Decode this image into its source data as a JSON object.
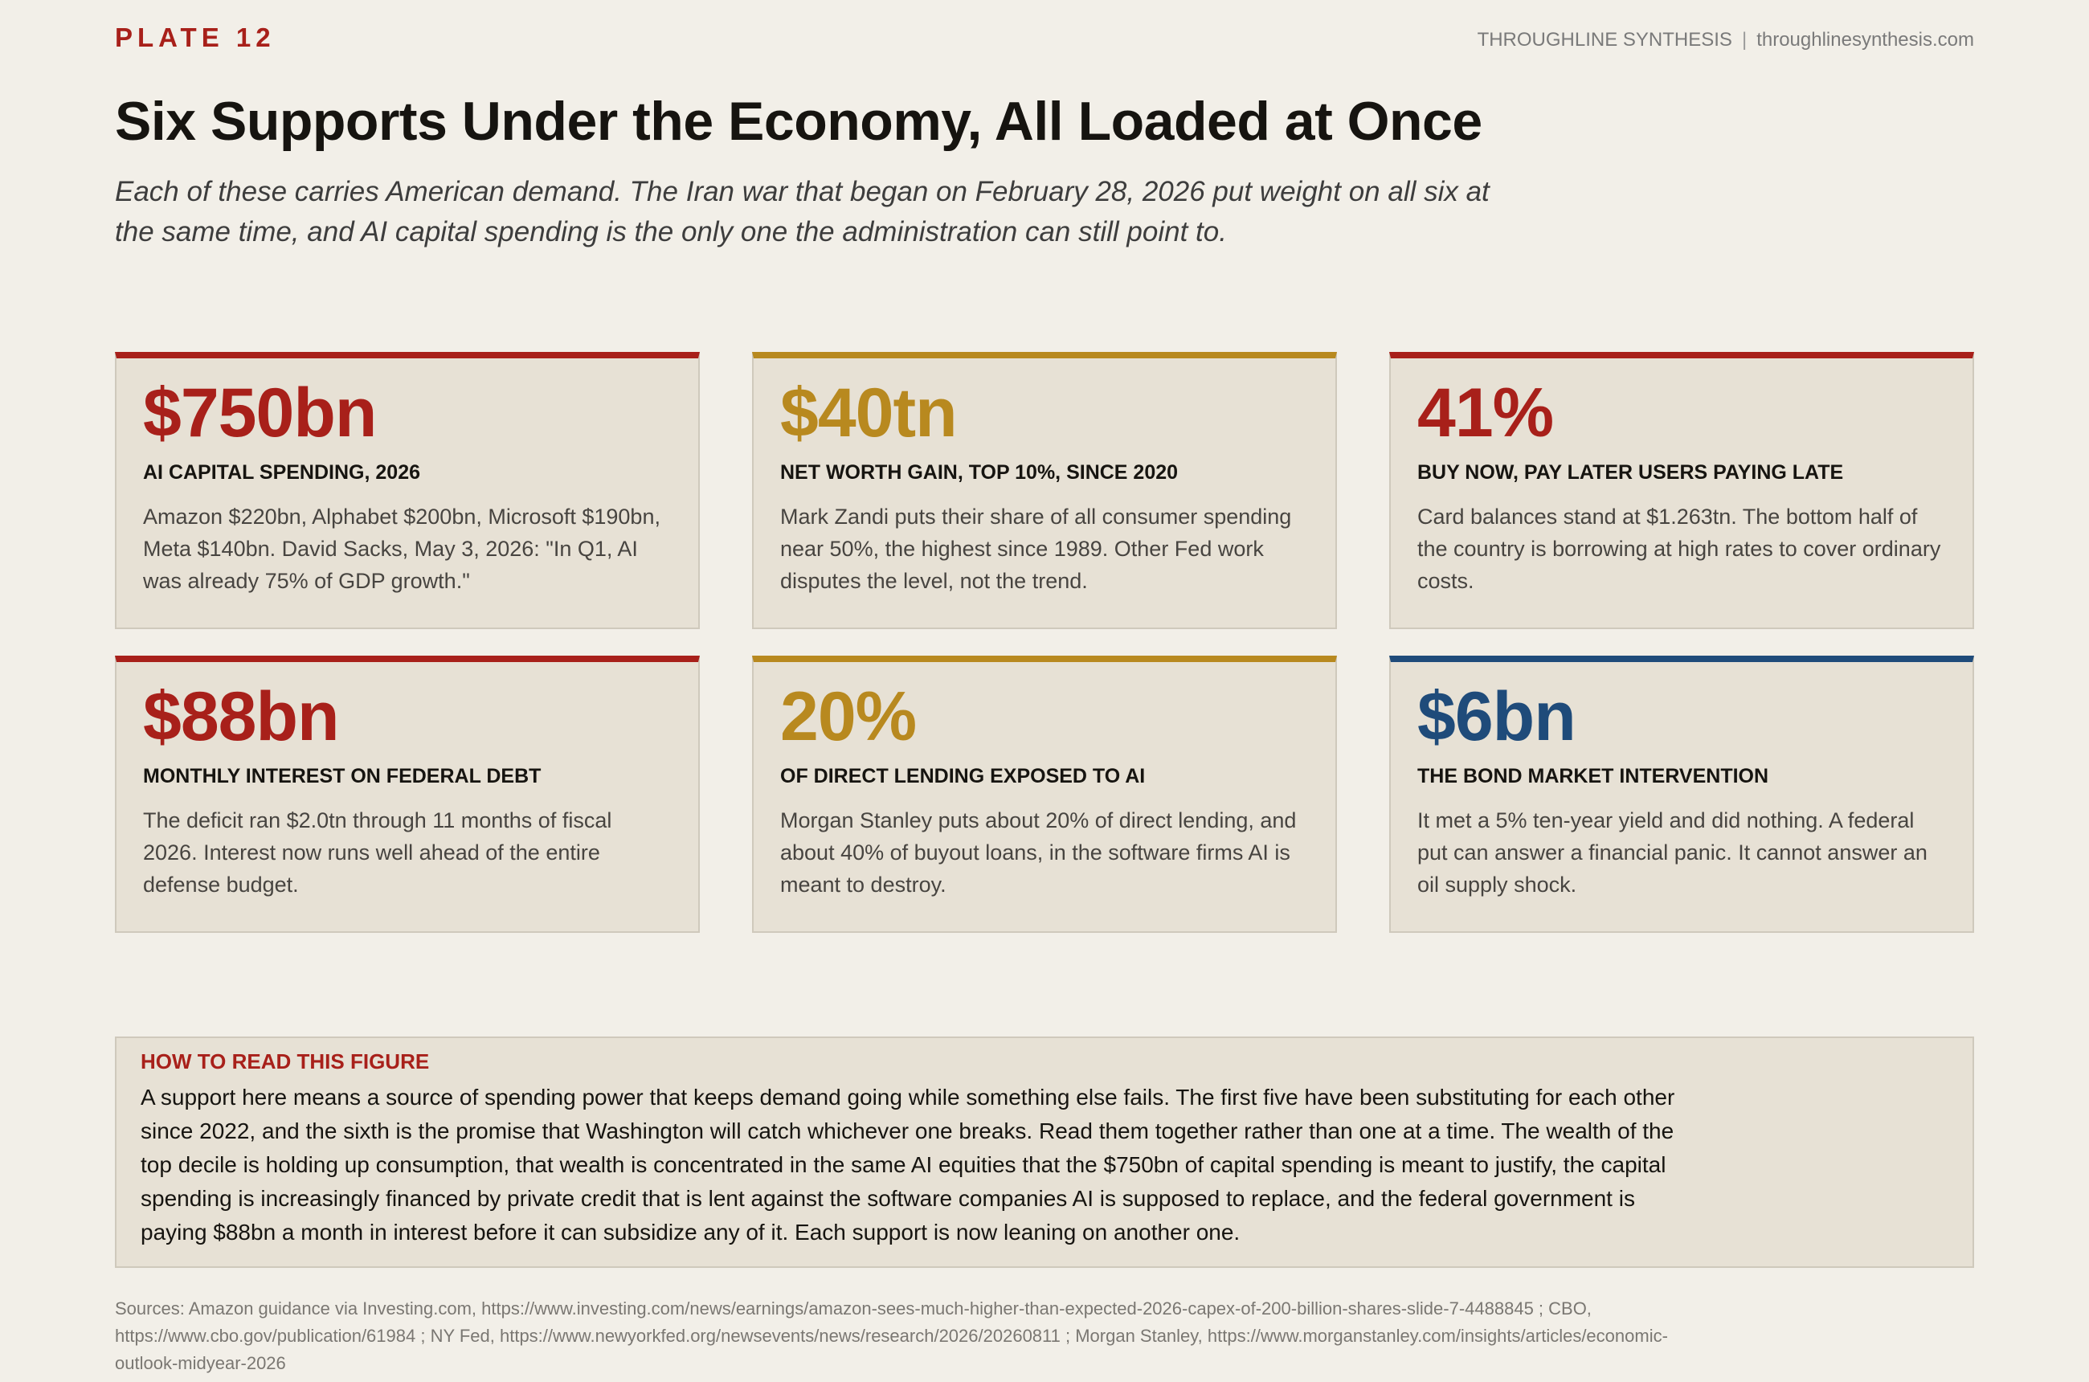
{
  "plate": "PLATE 12",
  "masthead": {
    "brand": "THROUGHLINE SYNTHESIS",
    "separator": "|",
    "url": "throughlinesynthesis.com"
  },
  "title": "Six Supports Under the Economy, All Loaded at Once",
  "subtitle": "Each of these carries American demand. The Iran war that began on February 28, 2026 put weight on all six at the same time, and AI capital spending is the only one the administration can still point to.",
  "colors": {
    "red": "#a8201a",
    "gold": "#b8891f",
    "blue": "#1f4b7a"
  },
  "cards": [
    {
      "figure": "$750bn",
      "label": "AI CAPITAL SPENDING, 2026",
      "desc": "Amazon $220bn, Alphabet $200bn, Microsoft $190bn, Meta $140bn. David Sacks, May 3, 2026: \"In Q1, AI was already 75% of GDP growth.\"",
      "accent": "red"
    },
    {
      "figure": "$40tn",
      "label": "NET WORTH GAIN, TOP 10%, SINCE 2020",
      "desc": "Mark Zandi puts their share of all consumer spending near 50%, the highest since 1989. Other Fed work disputes the level, not the trend.",
      "accent": "gold"
    },
    {
      "figure": "41%",
      "label": "BUY NOW, PAY LATER USERS PAYING LATE",
      "desc": "Card balances stand at $1.263tn. The bottom half of the country is borrowing at high rates to cover ordinary costs.",
      "accent": "red"
    },
    {
      "figure": "$88bn",
      "label": "MONTHLY INTEREST ON FEDERAL DEBT",
      "desc": "The deficit ran $2.0tn through 11 months of fiscal 2026. Interest now runs well ahead of the entire defense budget.",
      "accent": "red"
    },
    {
      "figure": "20%",
      "label": "OF DIRECT LENDING EXPOSED TO AI",
      "desc": "Morgan Stanley puts about 20% of direct lending, and about 40% of buyout loans, in the software firms AI is meant to destroy.",
      "accent": "gold"
    },
    {
      "figure": "$6bn",
      "label": "THE BOND MARKET INTERVENTION",
      "desc": "It met a 5% ten-year yield and did nothing. A federal put can answer a financial panic. It cannot answer an oil supply shock.",
      "accent": "blue"
    }
  ],
  "howto": {
    "heading": "HOW TO READ THIS FIGURE",
    "body": "A support here means a source of spending power that keeps demand going while something else fails. The first five have been substituting for each other since 2022, and the sixth is the promise that Washington will catch whichever one breaks. Read them together rather than one at a time. The wealth of the top decile is holding up consumption, that wealth is concentrated in the same AI equities that the $750bn of capital spending is meant to justify, the capital spending is increasingly financed by private credit that is lent against the software companies AI is supposed to replace, and the federal government is paying $88bn a month in interest before it can subsidize any of it. Each support is now leaning on another one."
  },
  "sources": "Sources: Amazon guidance via Investing.com, https://www.investing.com/news/earnings/amazon-sees-much-higher-than-expected-2026-capex-of-200-billion-shares-slide-7-4488845 ; CBO, https://www.cbo.gov/publication/61984 ; NY Fed, https://www.newyorkfed.org/newsevents/news/research/2026/20260811 ; Morgan Stanley, https://www.morganstanley.com/insights/articles/economic-outlook-midyear-2026"
}
